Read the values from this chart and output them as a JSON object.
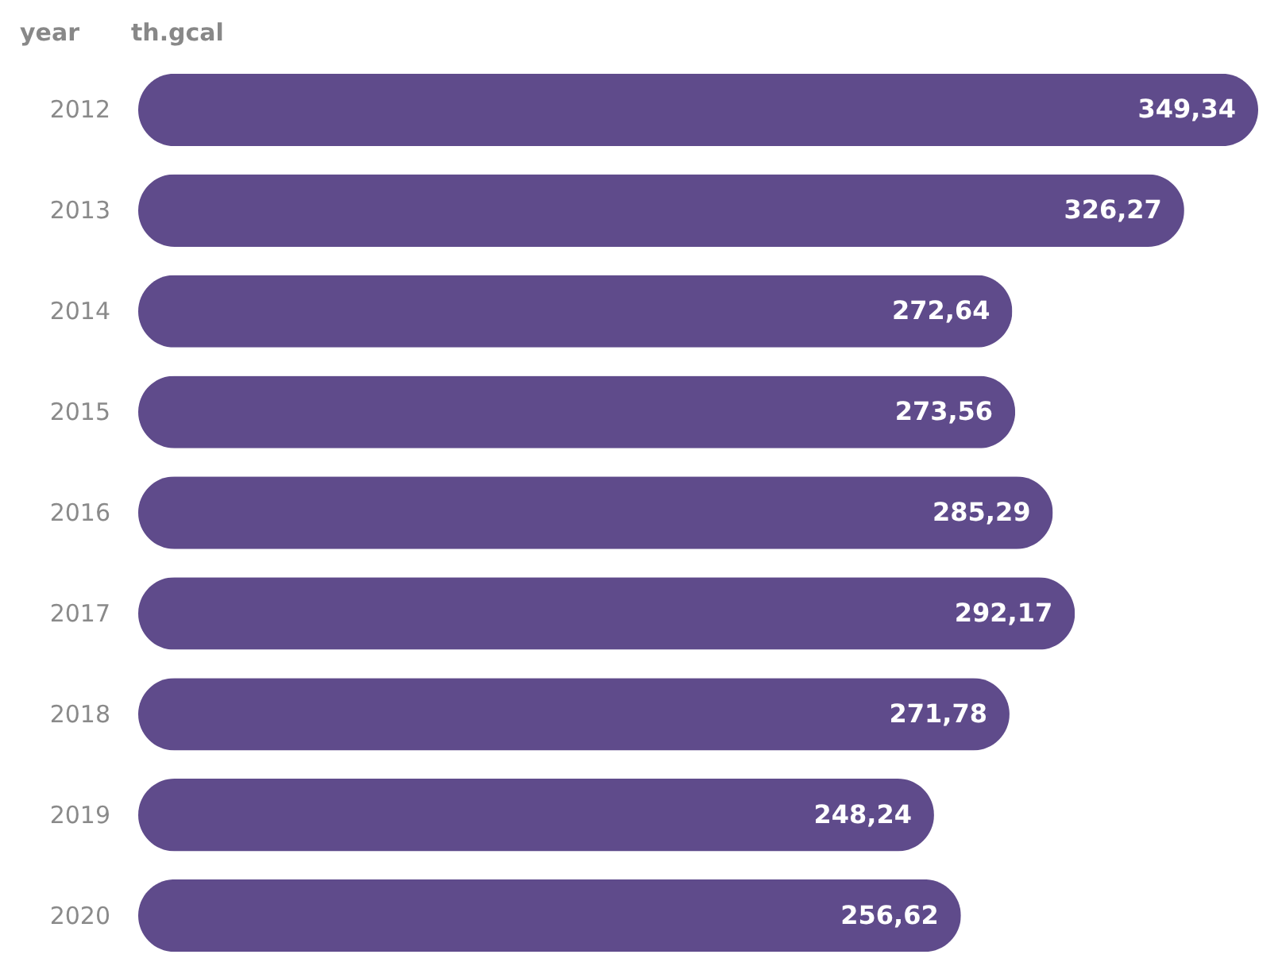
{
  "chart_data": {
    "type": "bar",
    "orientation": "horizontal",
    "ylabel": "year",
    "xlabel": "th.gcal",
    "categories": [
      "2012",
      "2013",
      "2014",
      "2015",
      "2016",
      "2017",
      "2018",
      "2019",
      "2020"
    ],
    "values": [
      349.34,
      326.27,
      272.64,
      273.56,
      285.29,
      292.17,
      271.78,
      248.24,
      256.62
    ],
    "value_labels": [
      "349,34",
      "326,27",
      "272,64",
      "273,56",
      "285,29",
      "292,17",
      "271,78",
      "248,24",
      "256,62"
    ],
    "color": "#5f4b8b",
    "tick_labels": "y"
  }
}
